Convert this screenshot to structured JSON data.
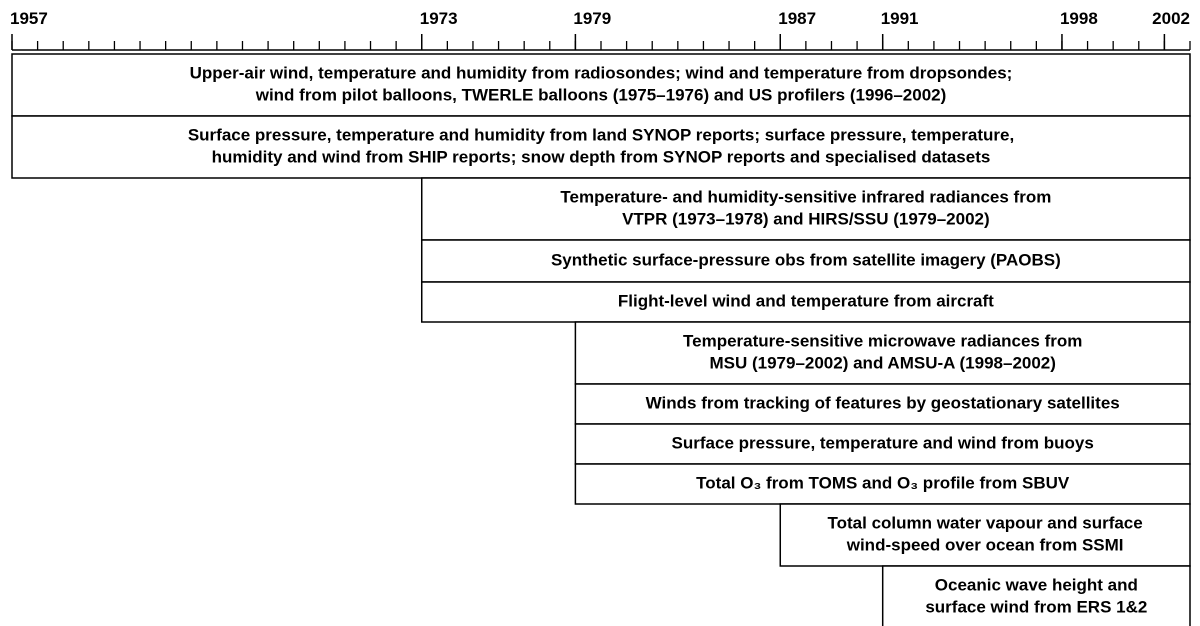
{
  "axis": {
    "range": [
      1957,
      2002
    ],
    "ticks": [
      1957,
      1973,
      1979,
      1987,
      1991,
      1998,
      2002
    ]
  },
  "rows": [
    {
      "lines": [
        "Upper-air wind, temperature and humidity from radiosondes; wind and temperature from dropsondes;",
        "wind from pilot balloons, TWERLE balloons (1975–1976) and US profilers (1996–2002)"
      ],
      "start": 1957,
      "end": 2002
    },
    {
      "lines": [
        "Surface pressure, temperature and humidity from land SYNOP reports; surface pressure, temperature,",
        "humidity and wind from SHIP reports; snow depth from SYNOP reports and specialised datasets"
      ],
      "start": 1957,
      "end": 2002
    },
    {
      "lines": [
        "Temperature- and humidity-sensitive infrared radiances from",
        "VTPR (1973–1978) and HIRS/SSU (1979–2002)"
      ],
      "start": 1973,
      "end": 2002
    },
    {
      "lines": [
        "Synthetic surface-pressure obs from satellite imagery (PAOBS)"
      ],
      "start": 1973,
      "end": 2002
    },
    {
      "lines": [
        "Flight-level wind and temperature from aircraft"
      ],
      "start": 1973,
      "end": 2002
    },
    {
      "lines": [
        "Temperature-sensitive microwave radiances from",
        "MSU (1979–2002) and AMSU-A (1998–2002)"
      ],
      "start": 1979,
      "end": 2002
    },
    {
      "lines": [
        "Winds from tracking of features by geostationary satellites"
      ],
      "start": 1979,
      "end": 2002
    },
    {
      "lines": [
        "Surface pressure, temperature and wind from buoys"
      ],
      "start": 1979,
      "end": 2002
    },
    {
      "lines": [
        "Total O₃ from TOMS and O₃ profile from SBUV"
      ],
      "start": 1979,
      "end": 2002
    },
    {
      "lines": [
        "Total column water vapour and surface",
        "wind-speed over ocean from SSMI"
      ],
      "start": 1987,
      "end": 2002
    },
    {
      "lines": [
        "Oceanic wave height and",
        "surface wind from ERS 1&2"
      ],
      "start": 1991,
      "end": 2002
    }
  ]
}
